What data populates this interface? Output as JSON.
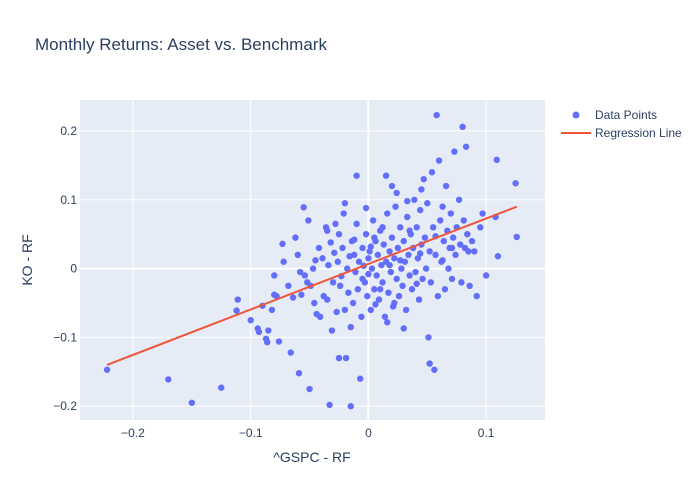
{
  "chart_data": {
    "type": "scatter",
    "title": "Monthly Returns: Asset vs. Benchmark",
    "xlabel": "^GSPC - RF",
    "ylabel": "KO - RF",
    "xlim": [
      -0.245,
      0.15
    ],
    "ylim": [
      -0.22,
      0.245
    ],
    "x_ticks": [
      -0.2,
      -0.1,
      0,
      0.1
    ],
    "x_tick_labels": [
      "−0.2",
      "−0.1",
      "0",
      "0.1"
    ],
    "y_ticks": [
      -0.2,
      -0.1,
      0,
      0.1,
      0.2
    ],
    "y_tick_labels": [
      "−0.2",
      "−0.1",
      "0",
      "0.1",
      "0.2"
    ],
    "grid": true,
    "plot_background": "#e5ecf6",
    "legend": {
      "placement": "top-right",
      "entries": [
        "Data Points",
        "Regression Line"
      ]
    },
    "series": [
      {
        "name": "Data Points",
        "type": "scatter",
        "color": "#636efa",
        "points": [
          [
            -0.222,
            -0.147
          ],
          [
            -0.17,
            -0.161
          ],
          [
            -0.15,
            -0.195
          ],
          [
            -0.125,
            -0.173
          ],
          [
            -0.111,
            -0.045
          ],
          [
            -0.112,
            -0.061
          ],
          [
            -0.1,
            -0.075
          ],
          [
            -0.094,
            -0.087
          ],
          [
            -0.093,
            -0.092
          ],
          [
            -0.09,
            -0.054
          ],
          [
            -0.087,
            -0.102
          ],
          [
            -0.086,
            -0.107
          ],
          [
            -0.085,
            -0.09
          ],
          [
            -0.082,
            -0.06
          ],
          [
            -0.08,
            -0.01
          ],
          [
            -0.08,
            -0.038
          ],
          [
            -0.078,
            -0.04
          ],
          [
            -0.076,
            -0.106
          ],
          [
            -0.073,
            0.036
          ],
          [
            -0.072,
            0.01
          ],
          [
            -0.066,
            -0.122
          ],
          [
            -0.064,
            -0.042
          ],
          [
            -0.062,
            0.045
          ],
          [
            -0.06,
            0.02
          ],
          [
            -0.059,
            -0.152
          ],
          [
            -0.057,
            -0.038
          ],
          [
            -0.055,
            0.089
          ],
          [
            -0.054,
            -0.01
          ],
          [
            -0.052,
            -0.02
          ],
          [
            -0.051,
            0.07
          ],
          [
            -0.05,
            -0.175
          ],
          [
            -0.049,
            -0.025
          ],
          [
            -0.047,
            0.0
          ],
          [
            -0.046,
            -0.05
          ],
          [
            -0.044,
            -0.066
          ],
          [
            -0.042,
            0.03
          ],
          [
            -0.041,
            -0.07
          ],
          [
            -0.039,
            0.015
          ],
          [
            -0.038,
            -0.04
          ],
          [
            -0.036,
            0.06
          ],
          [
            -0.035,
            -0.045
          ],
          [
            -0.034,
            0.005
          ],
          [
            -0.032,
            0.038
          ],
          [
            -0.031,
            -0.09
          ],
          [
            -0.03,
            -0.02
          ],
          [
            -0.029,
            0.023
          ],
          [
            -0.027,
            -0.063
          ],
          [
            -0.026,
            0.01
          ],
          [
            -0.025,
            0.05
          ],
          [
            -0.024,
            -0.025
          ],
          [
            -0.023,
            -0.011
          ],
          [
            -0.022,
            0.03
          ],
          [
            -0.021,
            0.08
          ],
          [
            -0.02,
            -0.06
          ],
          [
            -0.019,
            -0.13
          ],
          [
            -0.018,
            0.0
          ],
          [
            -0.017,
            -0.035
          ],
          [
            -0.016,
            0.018
          ],
          [
            -0.015,
            -0.085
          ],
          [
            -0.014,
            0.04
          ],
          [
            -0.013,
            -0.05
          ],
          [
            -0.012,
            0.02
          ],
          [
            -0.011,
            -0.005
          ],
          [
            -0.01,
            0.065
          ],
          [
            -0.009,
            -0.03
          ],
          [
            -0.008,
            0.01
          ],
          [
            -0.007,
            -0.16
          ],
          [
            -0.006,
            -0.07
          ],
          [
            -0.005,
            0.03
          ],
          [
            -0.004,
            0.004
          ],
          [
            -0.003,
            -0.02
          ],
          [
            -0.002,
            0.05
          ],
          [
            -0.001,
            -0.04
          ],
          [
            0.0,
            0.015
          ],
          [
            0.0,
            -0.008
          ],
          [
            0.001,
            0.025
          ],
          [
            0.002,
            -0.06
          ],
          [
            0.003,
            0.0
          ],
          [
            0.004,
            0.07
          ],
          [
            0.005,
            -0.03
          ],
          [
            0.006,
            0.04
          ],
          [
            0.007,
            -0.01
          ],
          [
            0.008,
            0.02
          ],
          [
            0.009,
            -0.045
          ],
          [
            0.01,
            0.055
          ],
          [
            0.011,
            0.005
          ],
          [
            0.012,
            -0.02
          ],
          [
            0.013,
            0.035
          ],
          [
            0.014,
            -0.07
          ],
          [
            0.015,
            0.01
          ],
          [
            0.016,
            0.08
          ],
          [
            0.017,
            -0.035
          ],
          [
            0.018,
            0.025
          ],
          [
            0.019,
            -0.005
          ],
          [
            0.02,
            0.045
          ],
          [
            0.021,
            -0.055
          ],
          [
            0.022,
            0.015
          ],
          [
            0.023,
            0.09
          ],
          [
            0.024,
            -0.015
          ],
          [
            0.025,
            0.03
          ],
          [
            0.026,
            -0.04
          ],
          [
            0.027,
            0.06
          ],
          [
            0.028,
            0.0
          ],
          [
            0.029,
            -0.025
          ],
          [
            0.03,
            0.04
          ],
          [
            0.031,
            0.01
          ],
          [
            0.032,
            -0.06
          ],
          [
            0.033,
            0.075
          ],
          [
            0.034,
            0.02
          ],
          [
            0.035,
            -0.01
          ],
          [
            0.036,
            0.05
          ],
          [
            0.037,
            -0.03
          ],
          [
            0.038,
            0.03
          ],
          [
            0.039,
            0.1
          ],
          [
            0.04,
            -0.005
          ],
          [
            0.041,
            0.06
          ],
          [
            0.042,
            0.015
          ],
          [
            0.043,
            -0.045
          ],
          [
            0.044,
            0.085
          ],
          [
            0.045,
            0.035
          ],
          [
            0.046,
            -0.015
          ],
          [
            0.047,
            0.13
          ],
          [
            0.048,
            0.045
          ],
          [
            0.049,
            0.0
          ],
          [
            0.05,
            0.095
          ],
          [
            0.051,
            -0.1
          ],
          [
            0.052,
            0.025
          ],
          [
            0.053,
            -0.02
          ],
          [
            0.054,
            0.14
          ],
          [
            0.055,
            0.06
          ],
          [
            0.056,
            -0.147
          ],
          [
            0.057,
            0.02
          ],
          [
            0.058,
            0.223
          ],
          [
            0.059,
            -0.04
          ],
          [
            0.06,
            0.157
          ],
          [
            0.061,
            0.07
          ],
          [
            0.062,
            0.01
          ],
          [
            0.063,
            0.09
          ],
          [
            0.064,
            0.04
          ],
          [
            0.065,
            -0.03
          ],
          [
            0.066,
            0.12
          ],
          [
            0.067,
            0.055
          ],
          [
            0.068,
            0.0
          ],
          [
            0.069,
            0.03
          ],
          [
            0.07,
            0.08
          ],
          [
            0.071,
            -0.015
          ],
          [
            0.072,
            0.045
          ],
          [
            0.073,
            0.17
          ],
          [
            0.074,
            0.02
          ],
          [
            0.075,
            0.06
          ],
          [
            0.077,
            0.1
          ],
          [
            0.078,
            0.035
          ],
          [
            0.079,
            -0.02
          ],
          [
            0.08,
            0.206
          ],
          [
            0.081,
            0.07
          ],
          [
            0.082,
            0.03
          ],
          [
            0.083,
            0.177
          ],
          [
            0.084,
            0.05
          ],
          [
            0.086,
            -0.025
          ],
          [
            0.088,
            0.04
          ],
          [
            0.09,
            0.025
          ],
          [
            0.092,
            -0.04
          ],
          [
            0.095,
            0.06
          ],
          [
            0.097,
            0.08
          ],
          [
            0.1,
            -0.01
          ],
          [
            0.108,
            0.075
          ],
          [
            0.109,
            0.158
          ],
          [
            0.11,
            0.018
          ],
          [
            0.125,
            0.124
          ],
          [
            0.126,
            0.046
          ],
          [
            -0.035,
            0.055
          ],
          [
            -0.028,
            0.065
          ],
          [
            -0.02,
            0.095
          ],
          [
            -0.01,
            0.135
          ],
          [
            0.015,
            0.135
          ],
          [
            0.02,
            0.12
          ],
          [
            0.024,
            0.11
          ],
          [
            0.045,
            0.115
          ],
          [
            0.005,
            0.045
          ],
          [
            0.012,
            0.06
          ],
          [
            0.018,
            0.005
          ],
          [
            -0.005,
            -0.015
          ],
          [
            0.03,
            -0.087
          ],
          [
            0.052,
            -0.138
          ],
          [
            -0.015,
            -0.2
          ],
          [
            -0.033,
            -0.198
          ],
          [
            -0.025,
            -0.13
          ],
          [
            0.01,
            -0.03
          ],
          [
            0.022,
            -0.05
          ],
          [
            0.035,
            0.055
          ],
          [
            0.002,
            0.032
          ],
          [
            -0.012,
            0.042
          ],
          [
            0.027,
            0.012
          ],
          [
            0.041,
            -0.022
          ],
          [
            0.063,
            0.012
          ],
          [
            0.071,
            0.03
          ],
          [
            0.085,
            0.025
          ],
          [
            -0.045,
            0.012
          ],
          [
            -0.058,
            -0.005
          ],
          [
            -0.068,
            -0.025
          ],
          [
            0.006,
            -0.052
          ],
          [
            0.016,
            -0.078
          ],
          [
            -0.002,
            0.088
          ],
          [
            0.033,
            0.098
          ],
          [
            0.057,
            0.047
          ],
          [
            0.044,
            0.022
          ]
        ]
      },
      {
        "name": "Regression Line",
        "type": "line",
        "color": "#ef553b",
        "x": [
          -0.222,
          0.126
        ],
        "y": [
          -0.14,
          0.09
        ]
      }
    ]
  }
}
